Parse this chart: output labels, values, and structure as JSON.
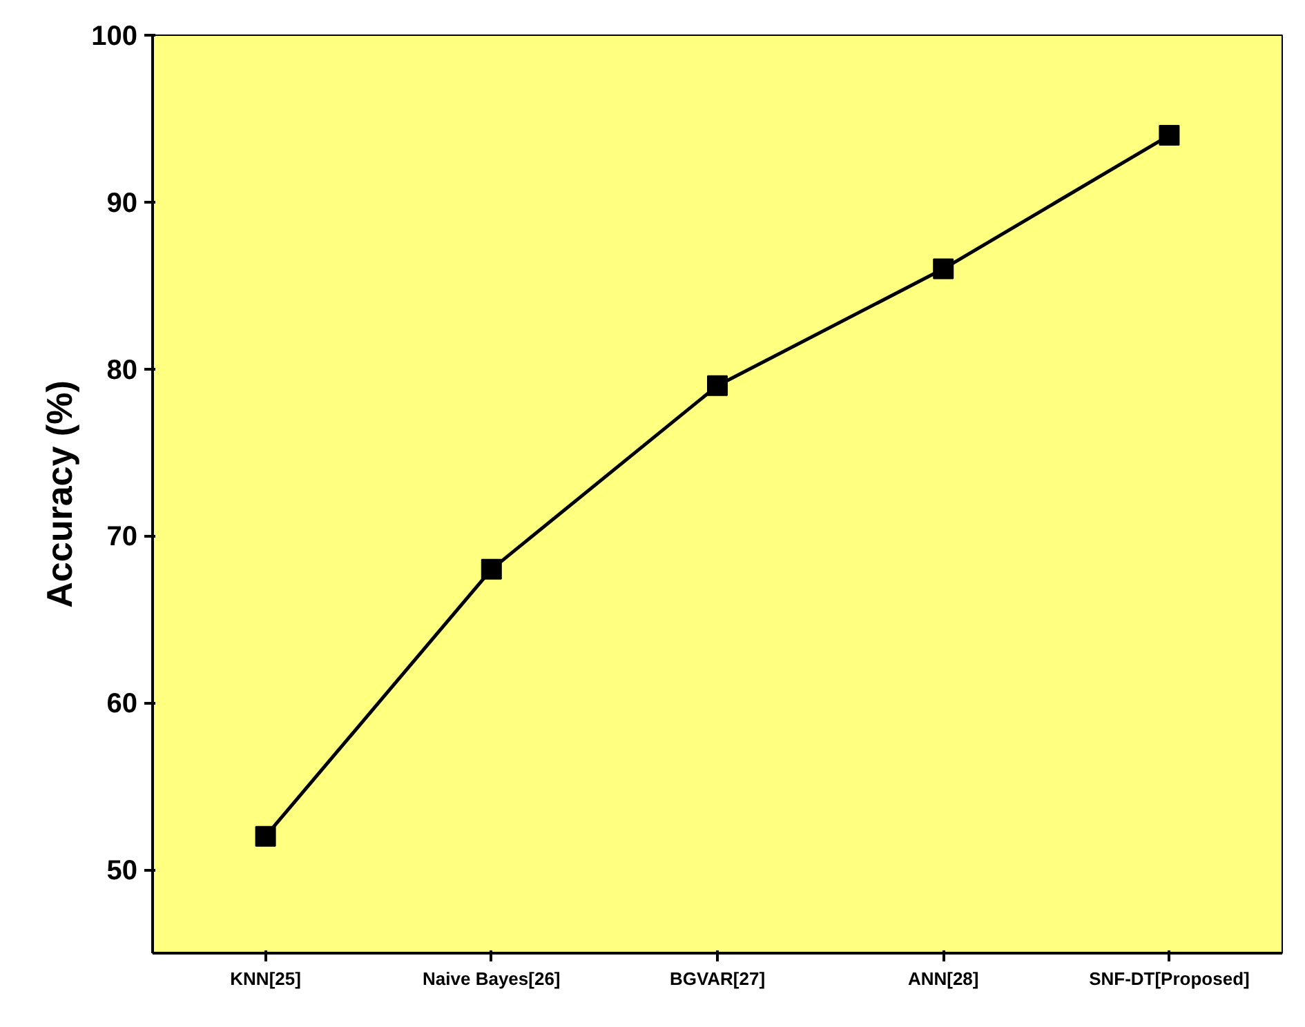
{
  "chart_data": {
    "type": "line",
    "ylabel": "Accuracy (%)",
    "categories": [
      "KNN[25]",
      "Naive Bayes[26]",
      "BGVAR[27]",
      "ANN[28]",
      "SNF-DT[Proposed]"
    ],
    "series": [
      {
        "color": "#000000",
        "values": [
          52,
          68,
          79,
          86,
          94
        ]
      }
    ],
    "ylim": [
      45,
      100
    ],
    "yticks": [
      50,
      60,
      70,
      80,
      90,
      100
    ],
    "grid": false,
    "marker": "square",
    "line_style": "solid"
  }
}
